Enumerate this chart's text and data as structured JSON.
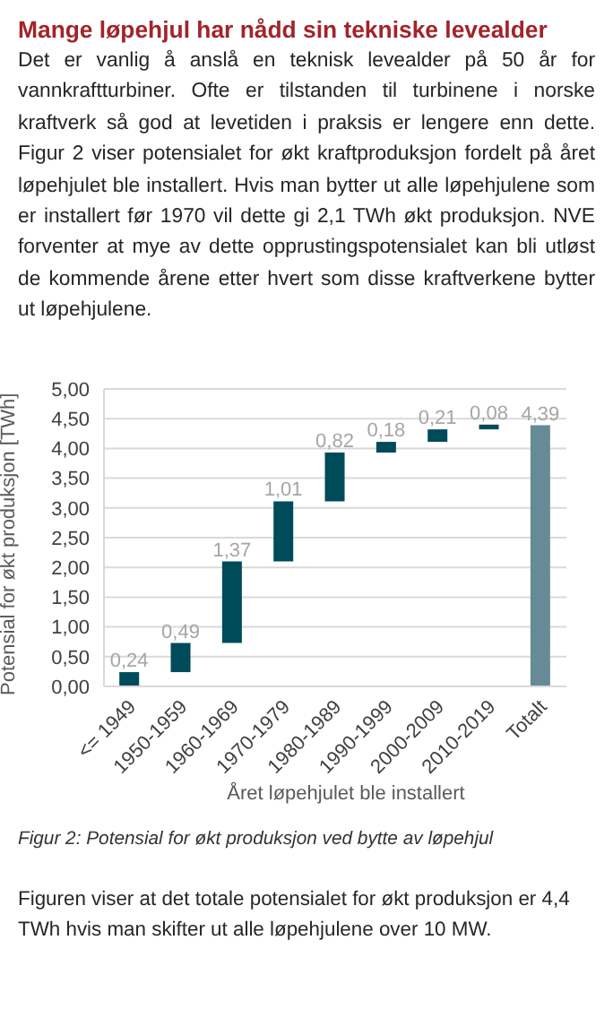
{
  "chart_data": {
    "type": "bar",
    "title": "Mange løpehjul har nådd sin tekniske levealder",
    "subtitle": "Det er vanlig å anslå en teknisk levealder på 50 år for vannkraftturbiner. Ofte er tilstanden til turbinene i norske kraftverk så god at levetiden i praksis er lengere enn dette. Figur 2 viser potensialet for økt kraftproduksjon fordelt på året løpehjulet ble installert. Hvis man bytter ut alle løpehjulene som er installert før 1970 vil dette gi 2,1 TWh økt produksjon. NVE forventer at mye av dette opprustingspotensialet kan bli utløst de kommende årene etter hvert som disse kraftverkene bytter ut løpehjulene.",
    "categories": [
      "<= 1949",
      "1950-1959",
      "1960-1969",
      "1970-1979",
      "1980-1989",
      "1990-1999",
      "2000-2009",
      "2010-2019",
      "Totalt"
    ],
    "values": [
      0.24,
      0.49,
      1.37,
      1.01,
      0.82,
      0.18,
      0.21,
      0.08,
      4.39
    ],
    "base": [
      0,
      0.24,
      0.73,
      2.1,
      3.11,
      3.93,
      4.11,
      4.32,
      0
    ],
    "value_labels": [
      "0,24",
      "0,49",
      "1,37",
      "1,01",
      "0,82",
      "0,18",
      "0,21",
      "0,08",
      "4,39"
    ],
    "colors": [
      "#004b5a",
      "#004b5a",
      "#004b5a",
      "#004b5a",
      "#004b5a",
      "#004b5a",
      "#004b5a",
      "#004b5a",
      "#678a99"
    ],
    "ylim": [
      0,
      5
    ],
    "yticks": [
      {
        "value": 0,
        "label": "0,00"
      },
      {
        "value": 0.5,
        "label": "0,50"
      },
      {
        "value": 1,
        "label": "1,00"
      },
      {
        "value": 1.5,
        "label": "1,50"
      },
      {
        "value": 2,
        "label": "2,00"
      },
      {
        "value": 2.5,
        "label": "2,50"
      },
      {
        "value": 3,
        "label": "3,00"
      },
      {
        "value": 3.5,
        "label": "3,50"
      },
      {
        "value": 4,
        "label": "4,00"
      },
      {
        "value": 4.5,
        "label": "4,50"
      },
      {
        "value": 5,
        "label": "5,00"
      }
    ],
    "grid": "y",
    "xlabel": "Året løpehjulet ble installert",
    "ylabel": "Potensial for økt produksjon [TWh]",
    "annotations": [
      "Figur 2: Potensial for økt produksjon ved bytte av løpehjul",
      "Figuren viser at det totale potensialet for økt produksjon er 4,4 TWh hvis man skifter ut alle løpehjulene over 10 MW."
    ]
  }
}
